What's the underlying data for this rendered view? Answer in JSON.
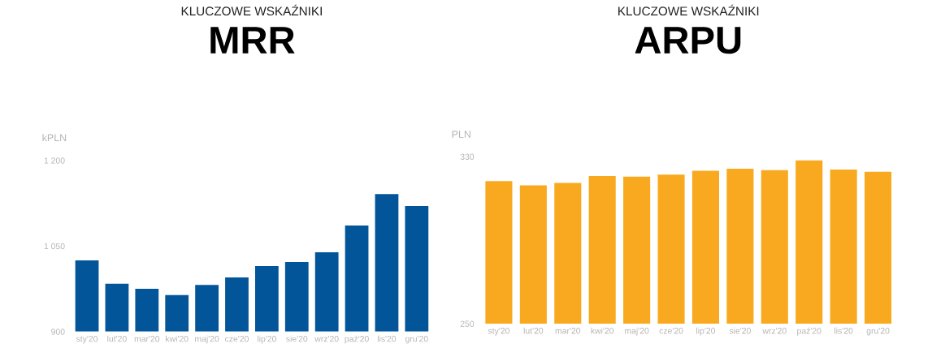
{
  "chart_data": [
    {
      "type": "bar",
      "subtitle": "KLUCZOWE WSKAŹNIKI",
      "title": "MRR",
      "ylabel": "kPLN",
      "categories": [
        "sty'20",
        "lut'20",
        "mar'20",
        "kwi'20",
        "maj'20",
        "cze'20",
        "lip'20",
        "sie'20",
        "wrz'20",
        "paź'20",
        "lis'20",
        "gru'20"
      ],
      "values": [
        1025,
        984,
        975,
        964,
        982,
        995,
        1015,
        1022,
        1039,
        1086,
        1141,
        1120
      ],
      "color": "#03559a",
      "ylim": [
        900,
        1200
      ],
      "yticks": [
        {
          "value": 900,
          "label": "900"
        },
        {
          "value": 1050,
          "label": "1 050"
        },
        {
          "value": 1200,
          "label": "1 200"
        }
      ],
      "grid": false
    },
    {
      "type": "bar",
      "subtitle": "KLUCZOWE WSKAŹNIKI",
      "title": "ARPU",
      "ylabel": "PLN",
      "categories": [
        "sty'20",
        "lut'20",
        "mar'20",
        "kwi'20",
        "maj'20",
        "cze'20",
        "lip'20",
        "sie'20",
        "wrz'20",
        "paź'20",
        "lis'20",
        "gru'20"
      ],
      "values": [
        318.3,
        316.2,
        317.4,
        320.7,
        320.4,
        321.4,
        323.2,
        324.2,
        323.5,
        328.2,
        323.8,
        322.7
      ],
      "color": "#f9a91f",
      "ylim": [
        250,
        330
      ],
      "yticks": [
        250,
        330
      ],
      "grid": false
    }
  ]
}
